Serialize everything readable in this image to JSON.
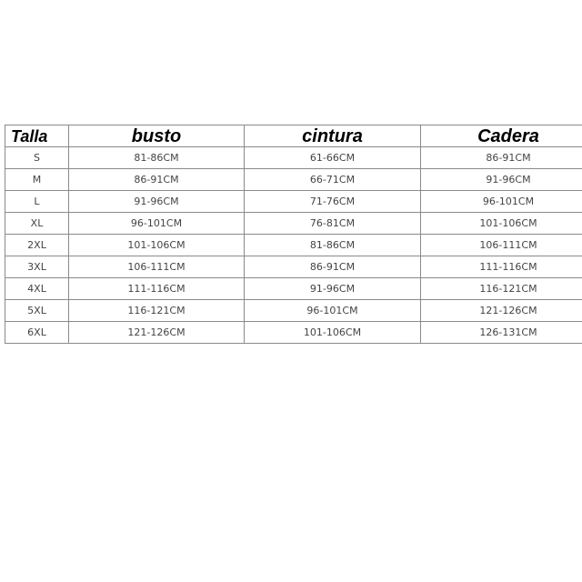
{
  "headers": [
    "Talla",
    "busto",
    "cintura",
    "Cadera"
  ],
  "rows": [
    [
      "S",
      "81-86CM",
      "61-66CM",
      "86-91CM"
    ],
    [
      "M",
      "86-91CM",
      "66-71CM",
      "91-96CM"
    ],
    [
      "L",
      "91-96CM",
      "71-76CM",
      "96-101CM"
    ],
    [
      "XL",
      "96-101CM",
      "76-81CM",
      "101-106CM"
    ],
    [
      "2XL",
      "101-106CM",
      "81-86CM",
      "106-111CM"
    ],
    [
      "3XL",
      "106-111CM",
      "86-91CM",
      "111-116CM"
    ],
    [
      "4XL",
      "111-116CM",
      "91-96CM",
      "116-121CM"
    ],
    [
      "5XL",
      "116-121CM",
      "96-101CM",
      "121-126CM"
    ],
    [
      "6XL",
      "121-126CM",
      "101-106CM",
      "126-131CM"
    ]
  ]
}
